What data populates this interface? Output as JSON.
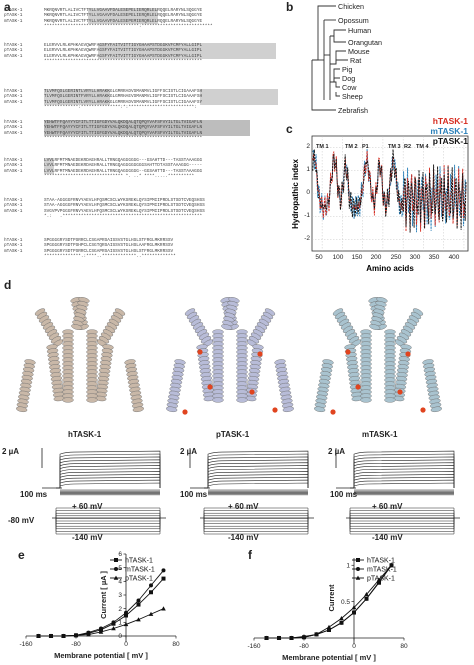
{
  "panels": {
    "a": "a",
    "b": "b",
    "c": "c",
    "d": "d",
    "e": "e",
    "f": "f"
  },
  "alignment": {
    "labels": [
      "hTASK-1",
      "pTASK-1",
      "mTASK-1"
    ],
    "blocks": [
      [
        "MKRQNVRTLALIVCTFTYLLVGAAVFDALESEPELIERQRLELRQQELRARYNLSQGGYE",
        "MKRQNVRTLALIVCTFTYLLVGAAVFDALESEPELIERQRLELRQQELRARYNLSQGGYE",
        "MKRQNVRTLALIVCTFTYLLVGAAVFDALESEPEMIERQRLELRQQELRARYNLSQGGYE"
      ],
      [
        "ELERVVLRLKPHKAGVQWRFAGSFYFAITVITTIGYGHAAPSTDGGKVFCMFYALLGIPL",
        "ELERVVLRLKPHKAGVQWRFAGSFYFAITVITTIGYGHAAPSTDGGKVFCMFYALLGIPL",
        "ELERVVLRLKPHKAGVQWRFAGSFYFAITVITTIGYGHAAPSTDGGKVFCMFYALLGIPL"
      ],
      [
        "TLVMFQSLGERINTLVRYLLHRAKKGLGMRRADVSMANMVLIGFFSCISTLCIGAAAFSH",
        "TLVMFQSLGERINTFVRYLLHRAKKGLGMRHAEVSMANMVLIGFFSCISTLCIGAAAFSH",
        "TLVMFQSLGERINTLVRYLLHRAKKGLGMRRADVSMANMVLIGFFSCISTLCIGAAAFSY"
      ],
      [
        "YEHWTFFQAYYYCFITLTTIGFGDYVALQKDQALQTQPQYVAFSFVYILTGLTVIGAFLN",
        "YEHWTFFQAYYYCFITLTTIGFGDYVALQKDQALQTQPQYVAFSFVYILTGLTVIGAFLN",
        "YEHWTFFQAYYYCFITLTTIGFGDYVALQKDQALQTQPQYVAFSFVYILTGLTVIGAFLN"
      ],
      [
        "LVVLRFMTMNAEDEKRDAEHRALLTRNGQAGGGGGG---GSAHTTD---TASSTAAAGGG",
        "LVVLRFMTMNAEDEKRDAEHRALLTRNGQAGGGGGGGGSAHTTDTASSTAAAGGG-----",
        "LVVLRFMTMNAEDEKRDAEHRALLTRNGQAGGGGGG--GGSAHTTD---TASSTAAAGGG"
      ],
      [
        "STAA-AGGGGFRNVYAEVLHFQSMCSCLWYKSREKLQYSIPMIIPRDLSTSDTCVEQSHSS",
        "STAA-AGGGGFRNVYAEVLHFQSMCSCLWYKSREKLQYSIPMIIPRDLSTSDTCVEQSHSS",
        "SVGVPVPGGGFRNVYAEVLHFQSMCSCLWYKSREKLQYSIPMIIPRDLSTSDTCVEQSHSS"
      ],
      [
        "SPGGGGRYSDTPSRRCLCSGAPRSAISSVSTGLHSLSTFRGLMKRRSSV",
        "SPGGGGRYSDTPSHPCLCSGTQRSAISSVSTGLHSLAAFRGLMKRRSSV",
        "SPGGGGRYSDTPSRRCLCSGAPRSAISSVSTGLHSLSTFRGLMKRRSSV"
      ]
    ],
    "conservation": [
      "************************************:***************************",
      "************************************************************",
      "*************:***************:*:*************************:",
      "************************************************************",
      "****************************** *. ..* ****.....**********",
      "*.:   .*****************************************************",
      "**************.:****..*************..*************"
    ]
  },
  "tree": {
    "species": [
      "Chicken",
      "Opossum",
      "Human",
      "Orangutan",
      "Mouse",
      "Rat",
      "Pig",
      "Dog",
      "Cow",
      "Sheep",
      "Zebrafish"
    ]
  },
  "hydropathy": {
    "ylabel": "Hydropathic index",
    "xlabel": "Amino acids",
    "legend": [
      "hTASK-1",
      "mTASK-1",
      "pTASK-1"
    ],
    "colors": {
      "hTASK-1": "#d62b1f",
      "mTASK-1": "#2a7fb8",
      "pTASK-1": "#111111"
    },
    "region_labels": [
      "TM 1",
      "TM 2",
      "P1",
      "TM 3",
      "R2",
      "TM 4"
    ],
    "yticks": [
      "2",
      "1",
      "0",
      "-1",
      "-2"
    ],
    "xticks": [
      "50",
      "100",
      "150",
      "200",
      "250",
      "300",
      "350",
      "400"
    ]
  },
  "structures": {
    "labels": [
      "hTASK-1",
      "pTASK-1",
      "mTASK-1"
    ],
    "colors": [
      "#c9b8a8",
      "#b8bcd8",
      "#a9c3cf"
    ]
  },
  "traces": {
    "scale_current": "2 µA",
    "scale_time": "100 ms",
    "step_top": "+ 60 mV",
    "holding": "-80 mV",
    "step_bottom": "-140 mV"
  },
  "chart_data": [
    {
      "type": "line",
      "title": "",
      "xlabel": "Membrane potential [ mV ]",
      "ylabel": "Current [ µA ]",
      "xticks": [
        -160,
        -80,
        0,
        80
      ],
      "yticks": [
        0,
        1,
        2,
        3,
        4,
        5,
        6
      ],
      "xlim": [
        -160,
        80
      ],
      "ylim": [
        0,
        6
      ],
      "legend_position": "top-right",
      "series": [
        {
          "name": "hTASK-1",
          "marker": "square",
          "x": [
            -140,
            -120,
            -100,
            -80,
            -60,
            -40,
            -20,
            0,
            20,
            40,
            60
          ],
          "y": [
            0.0,
            0.0,
            0.0,
            0.05,
            0.2,
            0.45,
            0.9,
            1.5,
            2.3,
            3.2,
            4.2
          ]
        },
        {
          "name": "mTASK-1",
          "marker": "circle",
          "x": [
            -140,
            -120,
            -100,
            -80,
            -60,
            -40,
            -20,
            0,
            20,
            40,
            60
          ],
          "y": [
            0.0,
            0.0,
            0.0,
            0.05,
            0.25,
            0.55,
            1.0,
            1.7,
            2.6,
            3.7,
            4.8
          ]
        },
        {
          "name": "pTASK-1",
          "marker": "triangle",
          "x": [
            -140,
            -120,
            -100,
            -80,
            -60,
            -40,
            -20,
            0,
            20,
            40,
            60
          ],
          "y": [
            0.0,
            0.0,
            0.0,
            0.05,
            0.1,
            0.3,
            0.55,
            0.85,
            1.2,
            1.6,
            2.0
          ]
        }
      ]
    },
    {
      "type": "line",
      "title": "",
      "xlabel": "Membrane potential [ mV ]",
      "ylabel": "Current",
      "xticks": [
        -160,
        -80,
        0,
        80
      ],
      "yticks": [
        0.5,
        1.0
      ],
      "xlim": [
        -160,
        80
      ],
      "ylim": [
        0,
        1.1
      ],
      "legend_position": "top-right",
      "series": [
        {
          "name": "hTASK-1",
          "marker": "square",
          "x": [
            -140,
            -120,
            -100,
            -80,
            -60,
            -40,
            -20,
            0,
            20,
            40,
            60
          ],
          "y": [
            0.0,
            0.0,
            0.0,
            0.01,
            0.05,
            0.11,
            0.21,
            0.35,
            0.54,
            0.76,
            1.0
          ]
        },
        {
          "name": "mTASK-1",
          "marker": "circle",
          "x": [
            -140,
            -120,
            -100,
            -80,
            -60,
            -40,
            -20,
            0,
            20,
            40,
            60
          ],
          "y": [
            0.0,
            0.0,
            0.0,
            0.01,
            0.05,
            0.11,
            0.21,
            0.35,
            0.54,
            0.77,
            1.0
          ]
        },
        {
          "name": "pTASK-1",
          "marker": "triangle",
          "x": [
            -140,
            -120,
            -100,
            -80,
            -60,
            -40,
            -20,
            0,
            20,
            40,
            60
          ],
          "y": [
            0.0,
            0.0,
            0.0,
            0.02,
            0.05,
            0.15,
            0.27,
            0.42,
            0.6,
            0.8,
            1.0
          ]
        }
      ]
    }
  ]
}
